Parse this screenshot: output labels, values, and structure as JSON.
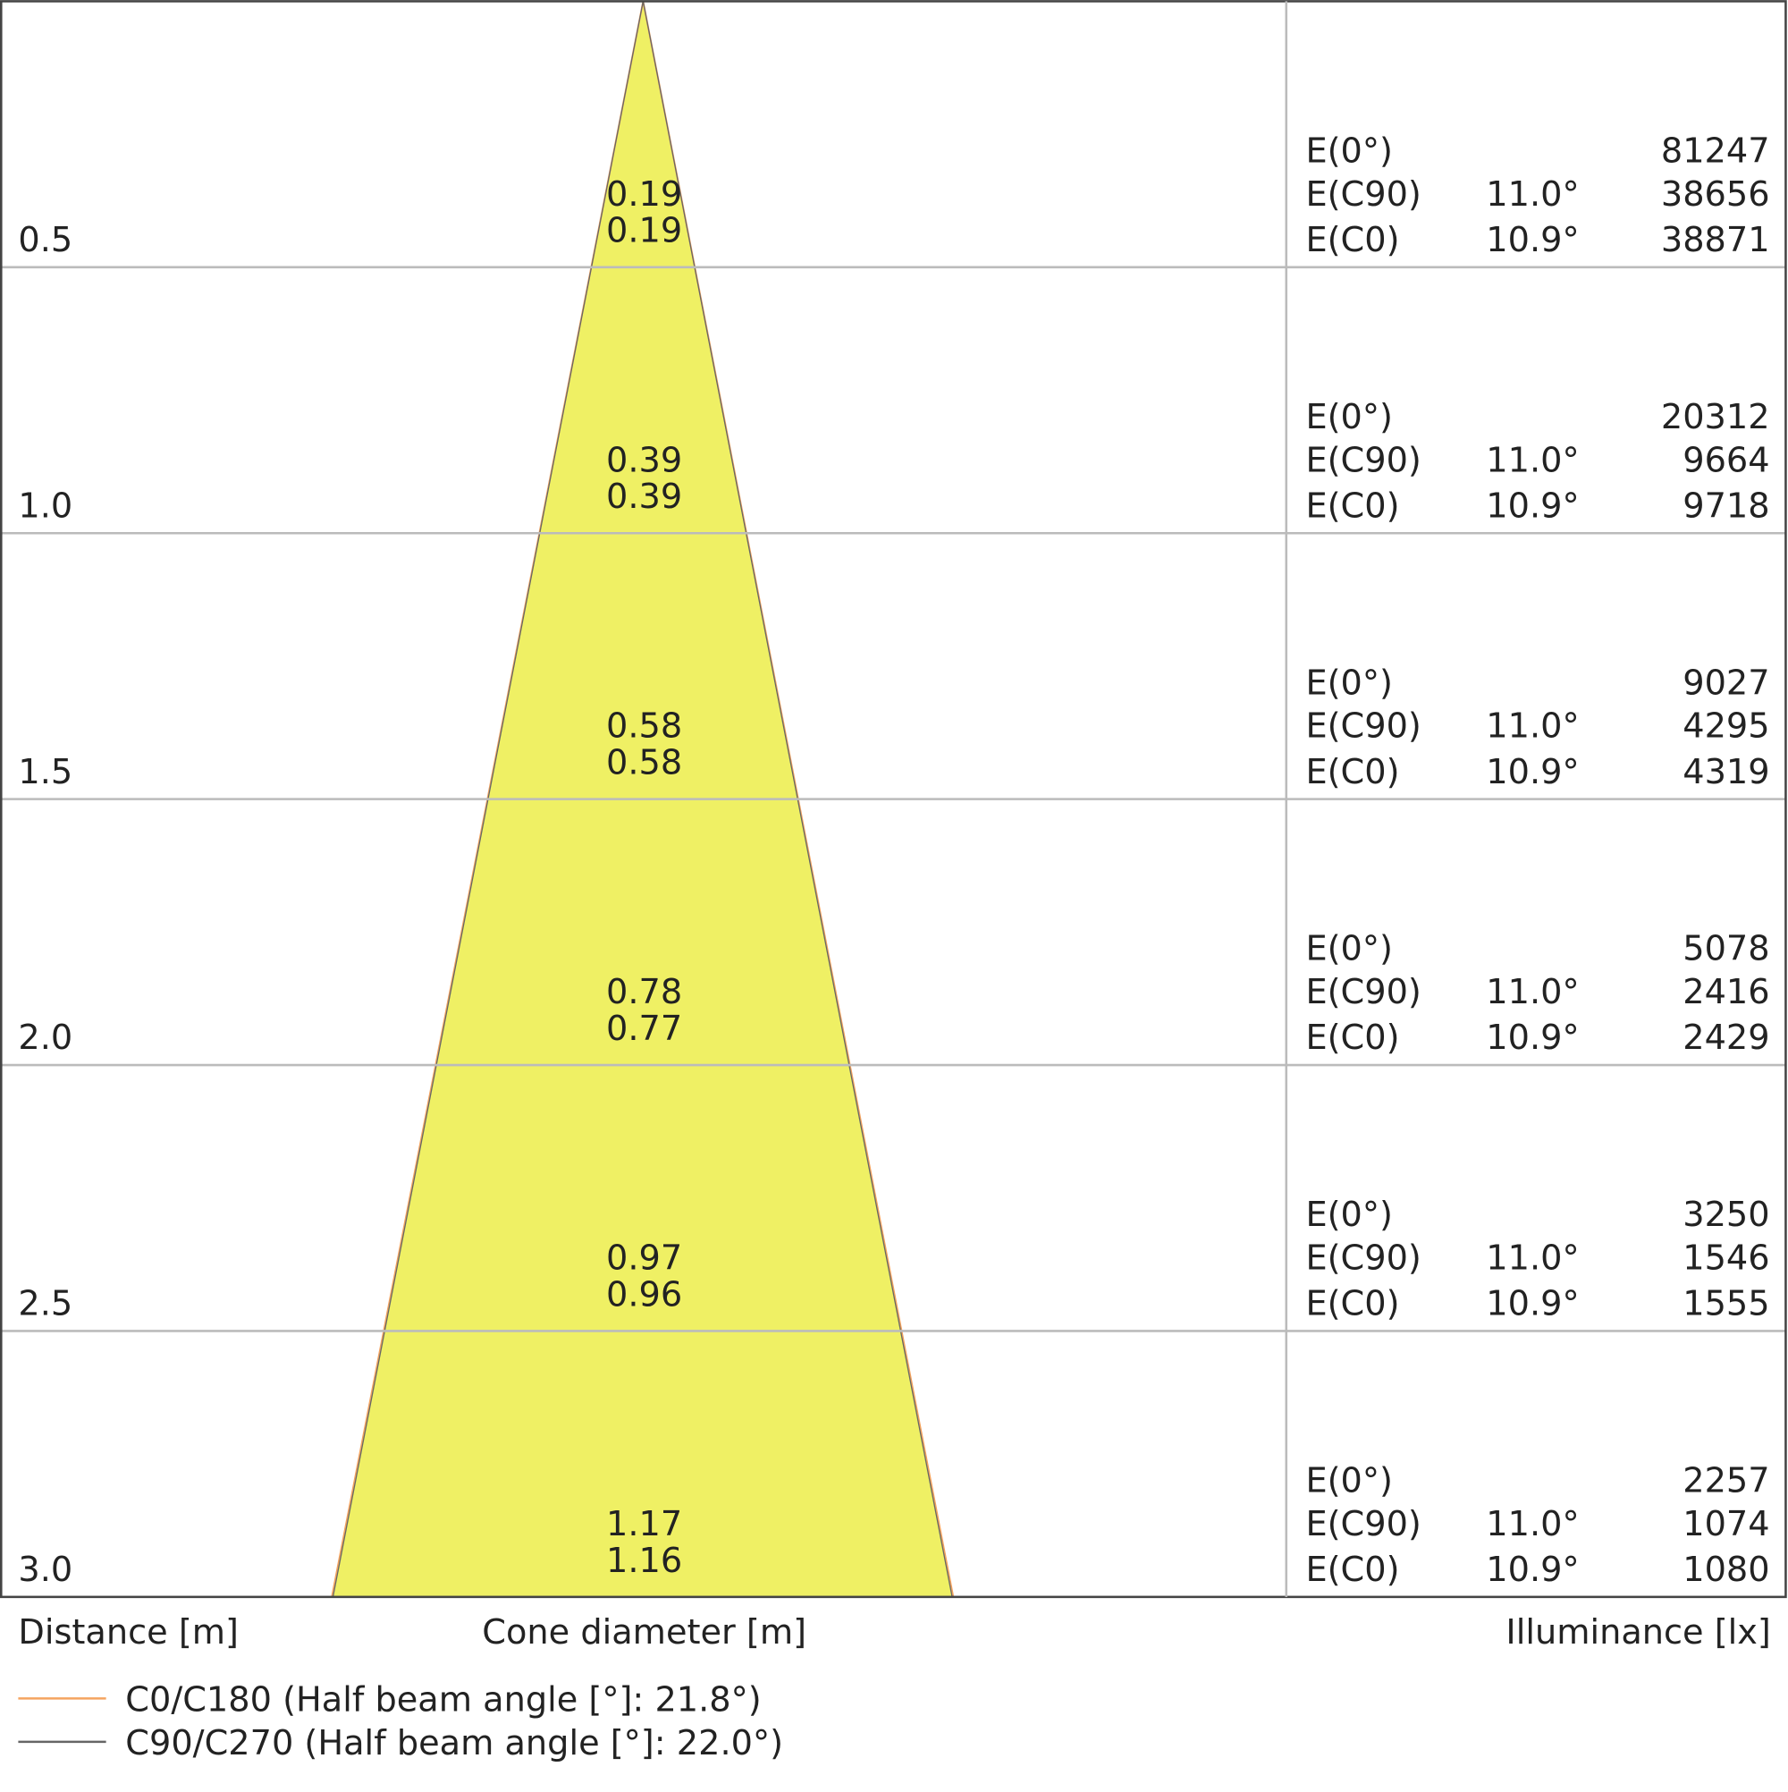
{
  "rows": [
    {
      "distance": "0.5",
      "cone_c90": "0.19",
      "cone_c0": "0.19",
      "e0_label": "E(0°)",
      "e0": "81247",
      "ec90_label": "E(C90)",
      "ec90_angle": "11.0°",
      "ec90": "38656",
      "ec0_label": "E(C0)",
      "ec0_angle": "10.9°",
      "ec0": "38871"
    },
    {
      "distance": "1.0",
      "cone_c90": "0.39",
      "cone_c0": "0.39",
      "e0_label": "E(0°)",
      "e0": "20312",
      "ec90_label": "E(C90)",
      "ec90_angle": "11.0°",
      "ec90": "9664",
      "ec0_label": "E(C0)",
      "ec0_angle": "10.9°",
      "ec0": "9718"
    },
    {
      "distance": "1.5",
      "cone_c90": "0.58",
      "cone_c0": "0.58",
      "e0_label": "E(0°)",
      "e0": "9027",
      "ec90_label": "E(C90)",
      "ec90_angle": "11.0°",
      "ec90": "4295",
      "ec0_label": "E(C0)",
      "ec0_angle": "10.9°",
      "ec0": "4319"
    },
    {
      "distance": "2.0",
      "cone_c90": "0.78",
      "cone_c0": "0.77",
      "e0_label": "E(0°)",
      "e0": "5078",
      "ec90_label": "E(C90)",
      "ec90_angle": "11.0°",
      "ec90": "2416",
      "ec0_label": "E(C0)",
      "ec0_angle": "10.9°",
      "ec0": "2429"
    },
    {
      "distance": "2.5",
      "cone_c90": "0.97",
      "cone_c0": "0.96",
      "e0_label": "E(0°)",
      "e0": "3250",
      "ec90_label": "E(C90)",
      "ec90_angle": "11.0°",
      "ec90": "1546",
      "ec0_label": "E(C0)",
      "ec0_angle": "10.9°",
      "ec0": "1555"
    },
    {
      "distance": "3.0",
      "cone_c90": "1.17",
      "cone_c0": "1.16",
      "e0_label": "E(0°)",
      "e0": "2257",
      "ec90_label": "E(C90)",
      "ec90_angle": "11.0°",
      "ec90": "1074",
      "ec0_label": "E(C0)",
      "ec0_angle": "10.9°",
      "ec0": "1080"
    }
  ],
  "axis_labels": {
    "distance": "Distance [m]",
    "cone": "Cone diameter [m]",
    "illuminance": "Illuminance [lx]"
  },
  "legend": [
    {
      "label": "C0/C180 (Half beam angle [°]: 21.8°)",
      "color": "#f4a460"
    },
    {
      "label": "C90/C270 (Half beam angle [°]: 22.0°)",
      "color": "#666666"
    }
  ]
}
